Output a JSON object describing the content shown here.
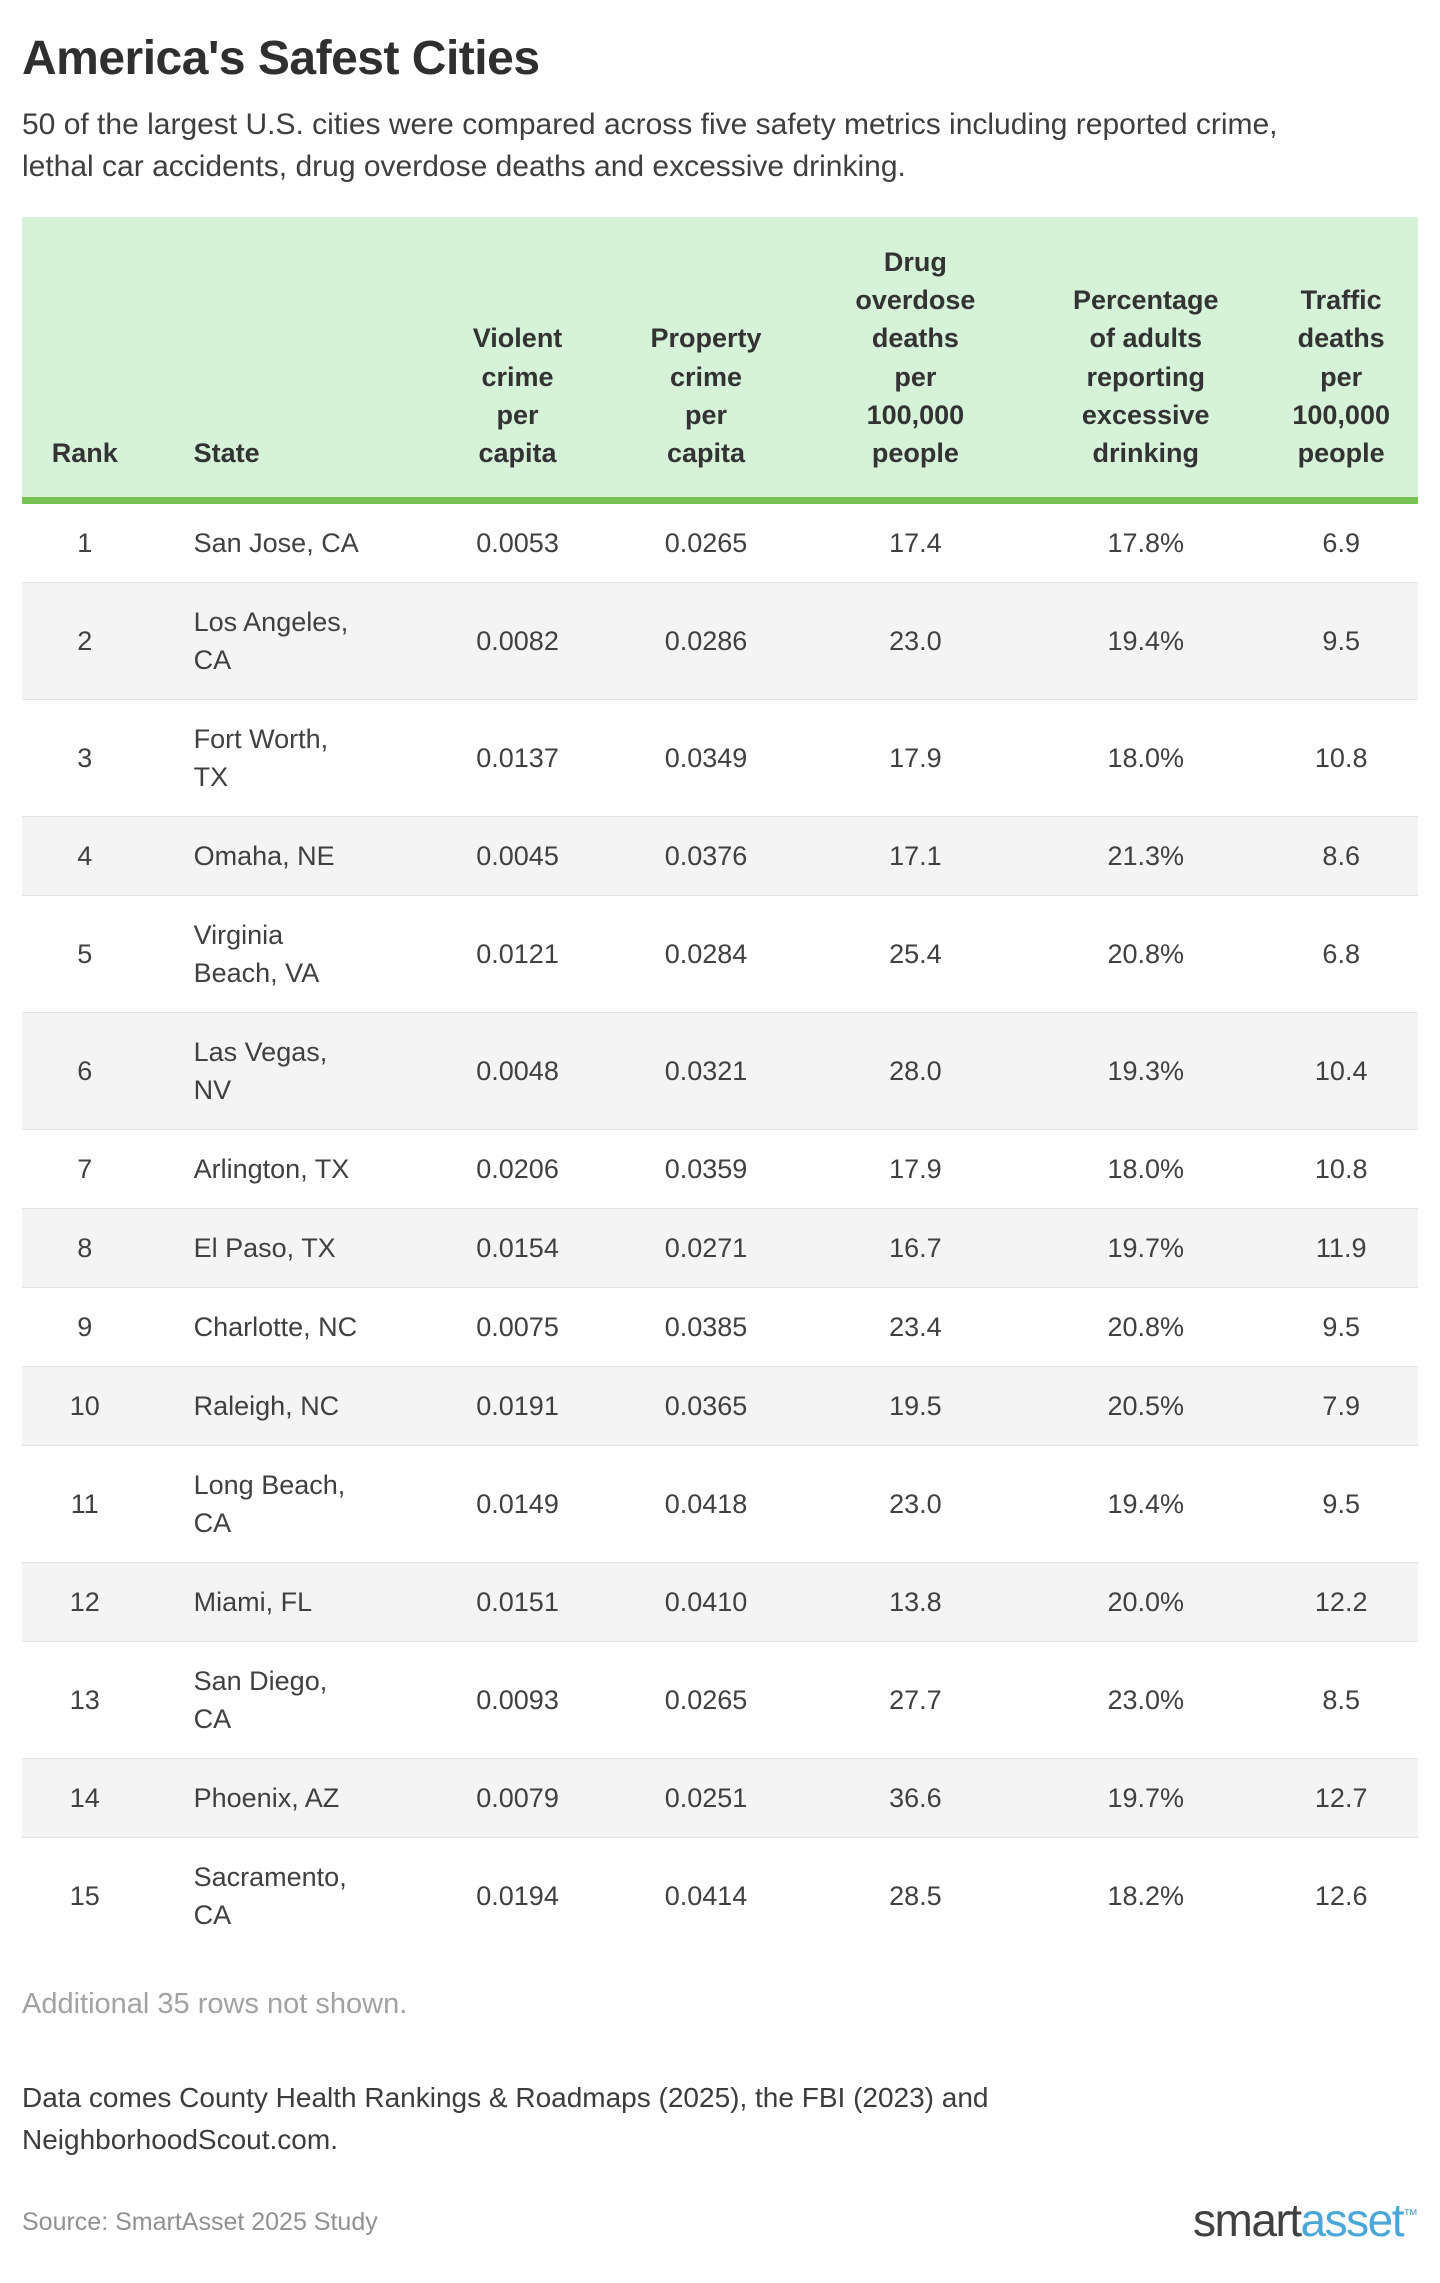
{
  "page": {
    "title": "America's Safest Cities",
    "subtitle": "50 of the largest U.S. cities were compared across five safety metrics including reported crime, lethal car accidents, drug overdose deaths and excessive drinking.",
    "additional_note": "Additional 35 rows not shown.",
    "footnote": "Data comes County Health Rankings & Roadmaps (2025), the FBI (2023) and NeighborhoodScout.com.",
    "source": "Source: SmartAsset 2025 Study",
    "logo": {
      "smart": "smart",
      "asset": "asset",
      "tm": "™"
    },
    "colors": {
      "header_bg": "#d6f2d9",
      "header_border_green": "#77c353",
      "row_stripe": "#f4f4f4",
      "logo_blue": "#4aa7d8"
    }
  },
  "chart_data": {
    "type": "table",
    "title": "America's Safest Cities",
    "columns": [
      "Rank",
      "State",
      "Violent crime per capita",
      "Property crime per capita",
      "Drug overdose deaths per 100,000 people",
      "Percentage of adults reporting excessive drinking",
      "Traffic deaths per 100,000 people"
    ],
    "rows": [
      [
        "1",
        "San Jose, CA",
        "0.0053",
        "0.0265",
        "17.4",
        "17.8%",
        "6.9"
      ],
      [
        "2",
        "Los Angeles, CA",
        "0.0082",
        "0.0286",
        "23.0",
        "19.4%",
        "9.5"
      ],
      [
        "3",
        "Fort Worth, TX",
        "0.0137",
        "0.0349",
        "17.9",
        "18.0%",
        "10.8"
      ],
      [
        "4",
        "Omaha, NE",
        "0.0045",
        "0.0376",
        "17.1",
        "21.3%",
        "8.6"
      ],
      [
        "5",
        "Virginia Beach, VA",
        "0.0121",
        "0.0284",
        "25.4",
        "20.8%",
        "6.8"
      ],
      [
        "6",
        "Las Vegas, NV",
        "0.0048",
        "0.0321",
        "28.0",
        "19.3%",
        "10.4"
      ],
      [
        "7",
        "Arlington, TX",
        "0.0206",
        "0.0359",
        "17.9",
        "18.0%",
        "10.8"
      ],
      [
        "8",
        "El Paso, TX",
        "0.0154",
        "0.0271",
        "16.7",
        "19.7%",
        "11.9"
      ],
      [
        "9",
        "Charlotte, NC",
        "0.0075",
        "0.0385",
        "23.4",
        "20.8%",
        "9.5"
      ],
      [
        "10",
        "Raleigh, NC",
        "0.0191",
        "0.0365",
        "19.5",
        "20.5%",
        "7.9"
      ],
      [
        "11",
        "Long Beach, CA",
        "0.0149",
        "0.0418",
        "23.0",
        "19.4%",
        "9.5"
      ],
      [
        "12",
        "Miami, FL",
        "0.0151",
        "0.0410",
        "13.8",
        "20.0%",
        "12.2"
      ],
      [
        "13",
        "San Diego, CA",
        "0.0093",
        "0.0265",
        "27.7",
        "23.0%",
        "8.5"
      ],
      [
        "14",
        "Phoenix, AZ",
        "0.0079",
        "0.0251",
        "36.6",
        "19.7%",
        "12.7"
      ],
      [
        "15",
        "Sacramento, CA",
        "0.0194",
        "0.0414",
        "28.5",
        "18.2%",
        "12.6"
      ]
    ]
  }
}
